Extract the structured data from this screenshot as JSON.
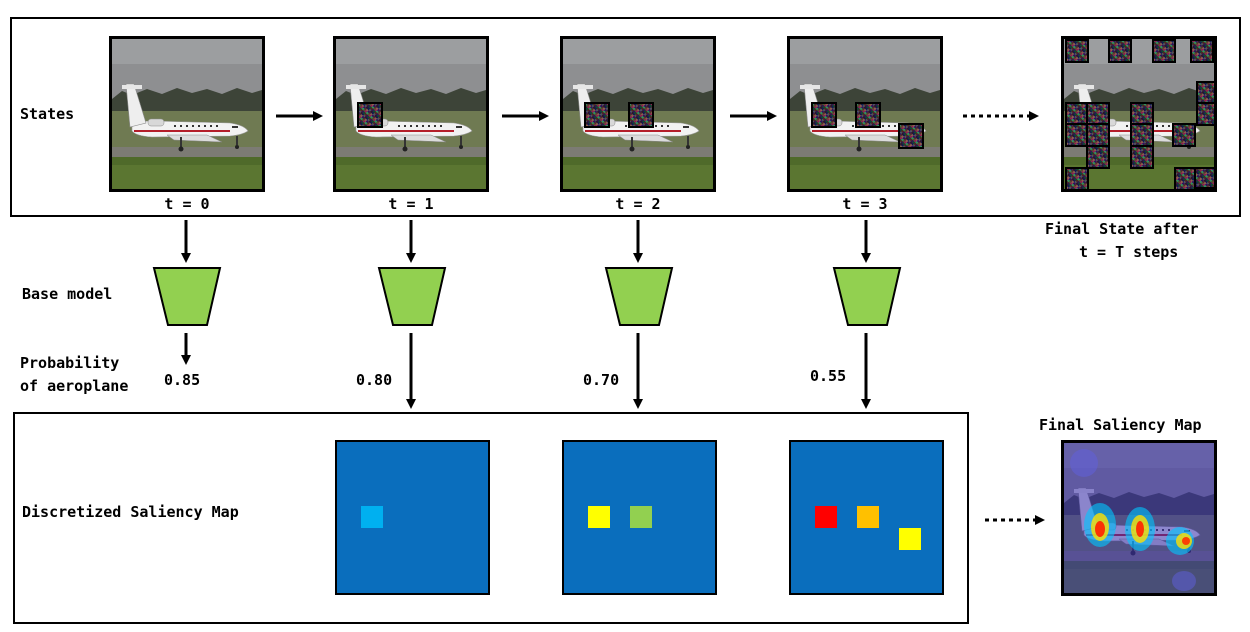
{
  "labels": {
    "states": "States",
    "base_model": "Base model",
    "probability_line1": "Probability",
    "probability_line2": "of aeroplane",
    "discretized_saliency_map": "Discretized Saliency Map",
    "final_state_line1": "Final State after",
    "final_state_line2": "t = T steps",
    "final_saliency_map": "Final Saliency Map"
  },
  "steps": [
    {
      "t_label": "t = 0",
      "probability": "0.85"
    },
    {
      "t_label": "t = 1",
      "probability": "0.80"
    },
    {
      "t_label": "t = 2",
      "probability": "0.70"
    },
    {
      "t_label": "t = 3",
      "probability": "0.55"
    }
  ],
  "colors": {
    "model": "#92d050",
    "saliency_background": "#0a6ebd",
    "cell_t1": "#00b0f0",
    "cell_t2_a": "#ffff00",
    "cell_t2_b": "#92d050",
    "cell_t3_a": "#ff0000",
    "cell_t3_b": "#ffc000",
    "cell_t3_c": "#ffff00"
  }
}
